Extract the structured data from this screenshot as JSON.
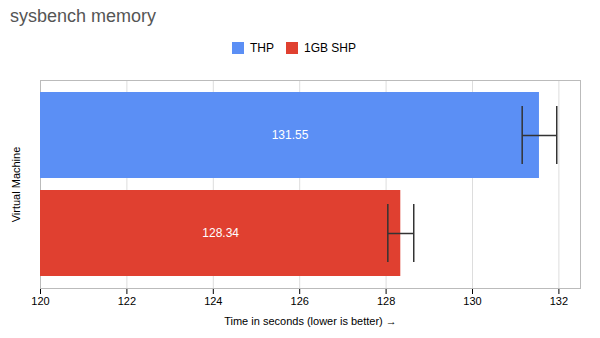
{
  "chart_data": {
    "type": "bar",
    "orientation": "horizontal",
    "title": "sysbench memory",
    "xlabel": "Time in seconds (lower is better)",
    "ylabel": "Virtual Machine",
    "categories": [
      "THP",
      "1GB SHP"
    ],
    "values": [
      131.55,
      128.34
    ],
    "errors": [
      0.4,
      0.3
    ],
    "colors": [
      "#5b8ff5",
      "#e04030"
    ],
    "xlim": [
      120,
      132.5
    ],
    "xticks": [
      120,
      122,
      124,
      126,
      128,
      130,
      132
    ],
    "grid": true,
    "data_labels": true,
    "legend": "top"
  }
}
